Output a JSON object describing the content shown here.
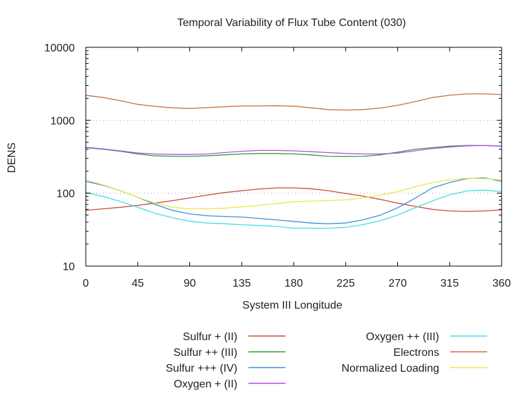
{
  "chart_data": {
    "type": "line",
    "title": "Temporal Variability of Flux Tube Content (030)",
    "xlabel": "System III Longitude",
    "ylabel": "DENS",
    "xlim": [
      0,
      360
    ],
    "ylim": [
      10,
      10000
    ],
    "yscale": "log",
    "xticks": [
      0,
      45,
      90,
      135,
      180,
      225,
      270,
      315,
      360
    ],
    "xtick_labels": [
      "0",
      "45",
      "90",
      "135",
      "180",
      "225",
      "270",
      "315",
      "360"
    ],
    "yticks": [
      10,
      100,
      1000,
      10000
    ],
    "ytick_labels": [
      "10",
      "100",
      "1000",
      "10000"
    ],
    "grid": "dotted at y=100 and y=1000",
    "legend_position": "bottom",
    "x": [
      0,
      15,
      30,
      45,
      60,
      75,
      90,
      105,
      120,
      135,
      150,
      165,
      180,
      195,
      210,
      225,
      240,
      255,
      270,
      285,
      300,
      315,
      330,
      345,
      360
    ],
    "series": [
      {
        "name": "Sulfur + (II)",
        "color": "#c84a3c",
        "values": [
          58,
          61,
          64,
          68,
          73,
          79,
          86,
          94,
          102,
          108,
          114,
          118,
          118,
          115,
          108,
          99,
          91,
          82,
          73,
          66,
          60,
          57,
          56,
          57,
          59
        ]
      },
      {
        "name": "Sulfur ++ (III)",
        "color": "#2ea02e",
        "values": [
          420,
          400,
          375,
          345,
          325,
          320,
          320,
          325,
          335,
          345,
          350,
          350,
          345,
          335,
          320,
          318,
          320,
          335,
          365,
          400,
          420,
          440,
          450,
          450,
          440
        ]
      },
      {
        "name": "Sulfur +++ (IV)",
        "color": "#3e8fd6",
        "values": [
          145,
          128,
          108,
          88,
          70,
          58,
          52,
          49,
          48,
          47,
          45,
          43,
          41,
          39,
          38,
          39,
          43,
          50,
          63,
          85,
          118,
          140,
          158,
          162,
          145
        ]
      },
      {
        "name": "Oxygen + (II)",
        "color": "#b44ce6",
        "values": [
          425,
          405,
          380,
          355,
          345,
          340,
          340,
          345,
          360,
          375,
          385,
          385,
          380,
          370,
          360,
          350,
          345,
          345,
          355,
          380,
          410,
          430,
          445,
          450,
          440
        ]
      },
      {
        "name": "Oxygen ++ (III)",
        "color": "#3ee0e0",
        "values": [
          102,
          90,
          77,
          64,
          53,
          46,
          41,
          39,
          38,
          37,
          36,
          35,
          33,
          33,
          33,
          34,
          37,
          42,
          50,
          63,
          78,
          95,
          107,
          110,
          105
        ]
      },
      {
        "name": "Electrons",
        "color": "#c8703c",
        "values": [
          2200,
          2050,
          1850,
          1650,
          1550,
          1480,
          1450,
          1490,
          1530,
          1570,
          1570,
          1580,
          1560,
          1480,
          1400,
          1380,
          1400,
          1470,
          1600,
          1800,
          2050,
          2200,
          2300,
          2300,
          2250
        ]
      },
      {
        "name": "Normalized Loading",
        "color": "#e8e84a",
        "values": [
          152,
          130,
          108,
          88,
          73,
          64,
          61,
          61,
          62,
          65,
          68,
          72,
          76,
          78,
          79,
          81,
          86,
          94,
          105,
          122,
          140,
          152,
          160,
          158,
          152
        ]
      }
    ]
  }
}
